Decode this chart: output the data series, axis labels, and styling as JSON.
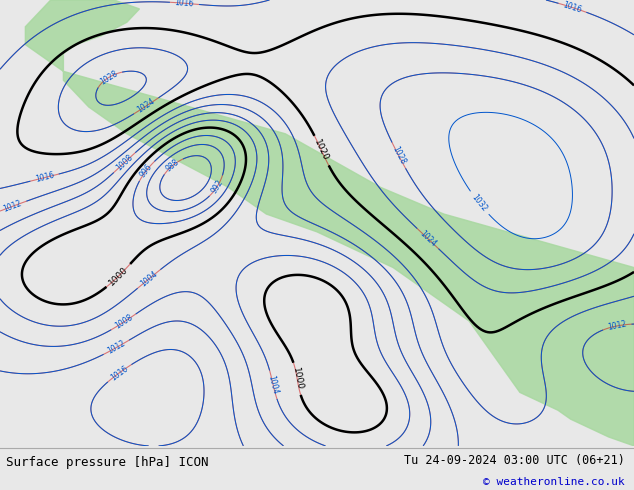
{
  "title_left": "Surface pressure [hPa] ICON",
  "title_right": "Tu 24-09-2024 03:00 UTC (06+21)",
  "copyright": "© weatheronline.co.uk",
  "bg_color": "#e8e8e8",
  "land_color": "#a8d8a0",
  "ocean_color": "#c8dce8",
  "text_color_black": "#000000",
  "text_color_blue": "#0000cc",
  "text_color_red": "#cc0000",
  "contour_blue": "#0055cc",
  "contour_black": "#000000",
  "contour_red": "#cc0000",
  "footer_bg": "#d4d4d4",
  "figsize": [
    6.34,
    4.9
  ],
  "dpi": 100
}
